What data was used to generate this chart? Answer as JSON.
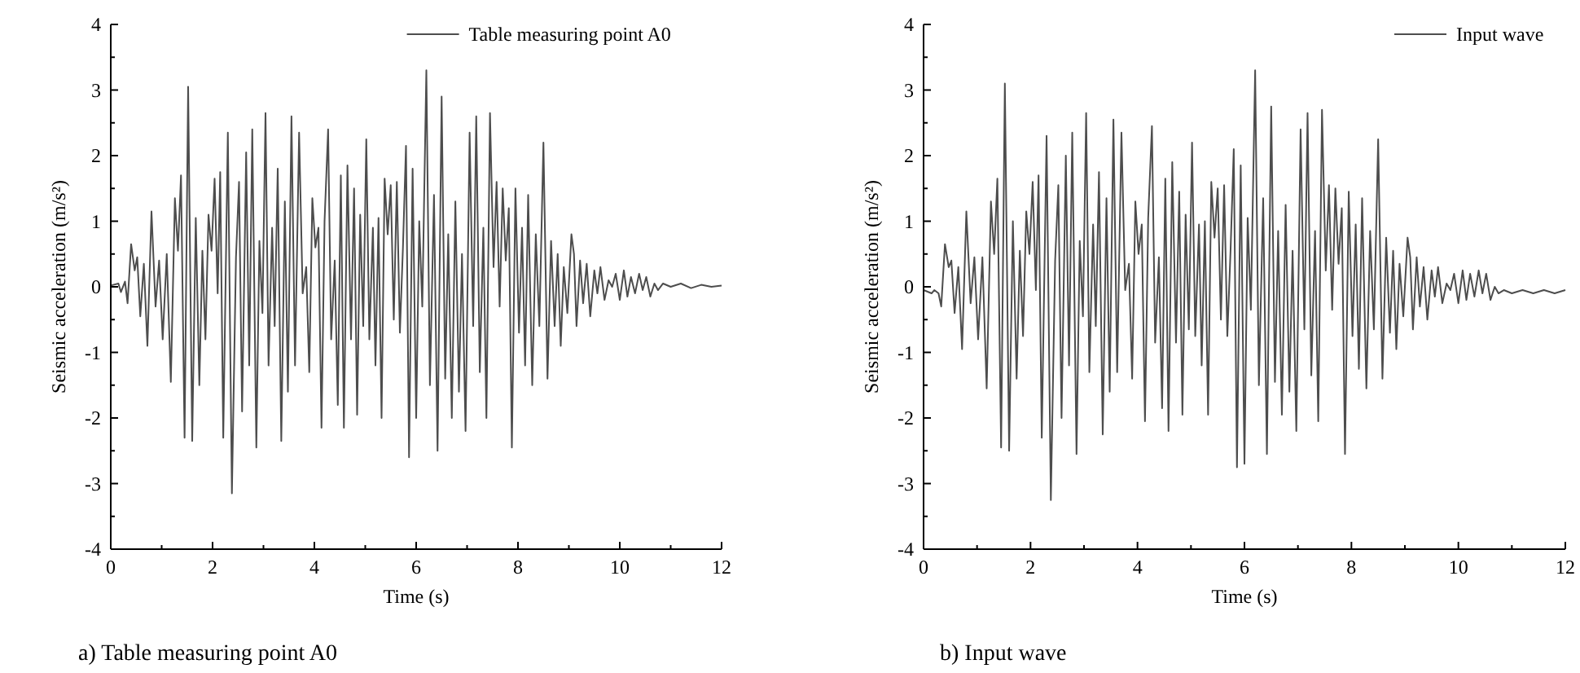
{
  "chart_data": [
    {
      "type": "line",
      "ylabel": "Seismic acceleration (m/s²)",
      "xlabel": "Time (s)",
      "annotations": [
        "a) Table measuring point A0"
      ],
      "legend": "top right",
      "marker": "none",
      "line_style": "solid",
      "xlim": [
        0,
        12
      ],
      "ylim": [
        -4,
        4
      ],
      "xticks": [
        0,
        {
          "value": 1,
          "label": null
        },
        2,
        {
          "value": 3,
          "label": null
        },
        4,
        {
          "value": 5,
          "label": null
        },
        6,
        {
          "value": 7,
          "label": null
        },
        8,
        {
          "value": 9,
          "label": null
        },
        10,
        {
          "value": 11,
          "label": null
        },
        12
      ],
      "yticks": [
        -4,
        {
          "value": -3.5,
          "label": null
        },
        -3,
        {
          "value": -2.5,
          "label": null
        },
        -2,
        {
          "value": -1.5,
          "label": null
        },
        -1,
        {
          "value": -0.5,
          "label": null
        },
        0,
        {
          "value": 0.5,
          "label": null
        },
        1,
        {
          "value": 1.5,
          "label": null
        },
        2,
        {
          "value": 2.5,
          "label": null
        },
        3,
        {
          "value": 3.5,
          "label": null
        },
        4
      ],
      "x": [
        0,
        0.15,
        0.2,
        0.28,
        0.33,
        0.4,
        0.47,
        0.52,
        0.58,
        0.65,
        0.72,
        0.8,
        0.88,
        0.95,
        1.02,
        1.1,
        1.18,
        1.26,
        1.32,
        1.38,
        1.45,
        1.52,
        1.6,
        1.67,
        1.74,
        1.8,
        1.86,
        1.92,
        1.98,
        2.04,
        2.1,
        2.15,
        2.21,
        2.3,
        2.38,
        2.46,
        2.52,
        2.58,
        2.66,
        2.72,
        2.78,
        2.86,
        2.92,
        2.98,
        3.04,
        3.1,
        3.17,
        3.22,
        3.28,
        3.35,
        3.42,
        3.48,
        3.55,
        3.62,
        3.7,
        3.77,
        3.84,
        3.9,
        3.96,
        4.02,
        4.08,
        4.14,
        4.2,
        4.27,
        4.33,
        4.4,
        4.46,
        4.52,
        4.58,
        4.65,
        4.72,
        4.78,
        4.84,
        4.9,
        4.96,
        5.02,
        5.08,
        5.15,
        5.2,
        5.26,
        5.32,
        5.38,
        5.44,
        5.5,
        5.56,
        5.62,
        5.68,
        5.74,
        5.8,
        5.86,
        5.93,
        6.0,
        6.06,
        6.12,
        6.2,
        6.27,
        6.35,
        6.42,
        6.5,
        6.57,
        6.63,
        6.7,
        6.77,
        6.84,
        6.9,
        6.97,
        7.05,
        7.12,
        7.18,
        7.25,
        7.32,
        7.38,
        7.45,
        7.52,
        7.58,
        7.64,
        7.7,
        7.76,
        7.82,
        7.88,
        7.95,
        8.02,
        8.08,
        8.14,
        8.2,
        8.28,
        8.35,
        8.42,
        8.5,
        8.58,
        8.65,
        8.72,
        8.78,
        8.84,
        8.9,
        8.97,
        9.05,
        9.1,
        9.15,
        9.22,
        9.28,
        9.35,
        9.42,
        9.5,
        9.56,
        9.62,
        9.7,
        9.78,
        9.85,
        9.92,
        10.0,
        10.08,
        10.15,
        10.22,
        10.3,
        10.38,
        10.45,
        10.52,
        10.6,
        10.68,
        10.75,
        10.85,
        11.0,
        11.2,
        11.4,
        11.6,
        11.8,
        12
      ],
      "series": [
        {
          "name": "Table measuring point A0",
          "color": "#4d4d4d",
          "values": [
            0.02,
            0.05,
            -0.08,
            0.08,
            -0.25,
            0.65,
            0.25,
            0.45,
            -0.45,
            0.35,
            -0.9,
            1.15,
            -0.3,
            0.4,
            -0.8,
            0.5,
            -1.45,
            1.35,
            0.55,
            1.7,
            -2.3,
            3.05,
            -2.35,
            1.05,
            -1.5,
            0.55,
            -0.8,
            1.1,
            0.55,
            1.65,
            -0.1,
            1.75,
            -2.3,
            2.35,
            -3.15,
            0.45,
            1.6,
            -1.9,
            2.05,
            -1.2,
            2.4,
            -2.45,
            0.7,
            -0.4,
            2.65,
            -1.2,
            0.9,
            -0.6,
            1.8,
            -2.35,
            1.3,
            -1.6,
            2.6,
            -1.2,
            2.35,
            -0.1,
            0.3,
            -1.3,
            1.35,
            0.6,
            0.9,
            -2.15,
            1.0,
            2.4,
            -0.8,
            0.4,
            -1.8,
            1.7,
            -2.15,
            1.85,
            -0.8,
            1.5,
            -1.95,
            1.1,
            -0.6,
            2.25,
            -0.8,
            0.9,
            -1.2,
            1.05,
            -2.0,
            1.65,
            0.8,
            1.55,
            -0.5,
            1.6,
            -0.7,
            0.6,
            2.15,
            -2.6,
            1.8,
            -2.0,
            1.0,
            -0.3,
            3.3,
            -1.5,
            1.4,
            -2.5,
            2.9,
            -1.4,
            0.8,
            -2.0,
            1.3,
            -1.6,
            0.5,
            -2.2,
            2.35,
            -0.6,
            2.6,
            -1.3,
            0.9,
            -2.0,
            2.65,
            0.3,
            1.6,
            -0.3,
            1.5,
            0.4,
            1.2,
            -2.45,
            1.5,
            -0.7,
            0.9,
            -1.2,
            1.4,
            -1.5,
            0.8,
            -0.6,
            2.2,
            -1.4,
            0.7,
            -0.6,
            0.5,
            -0.9,
            0.3,
            -0.4,
            0.8,
            0.5,
            -0.6,
            0.4,
            -0.25,
            0.35,
            -0.45,
            0.25,
            -0.1,
            0.3,
            -0.2,
            0.1,
            0.0,
            0.2,
            -0.2,
            0.25,
            -0.15,
            0.15,
            -0.1,
            0.2,
            -0.05,
            0.15,
            -0.15,
            0.05,
            -0.05,
            0.05,
            0.0,
            0.05,
            -0.02,
            0.03,
            0.0,
            0.02
          ]
        }
      ]
    },
    {
      "type": "line",
      "ylabel": "Seismic acceleration (m/s²)",
      "xlabel": "Time (s)",
      "annotations": [
        "b) Input wave"
      ],
      "legend": "top right",
      "marker": "none",
      "line_style": "solid",
      "xlim": [
        0,
        12
      ],
      "ylim": [
        -4,
        4
      ],
      "xticks": [
        0,
        {
          "value": 1,
          "label": null
        },
        2,
        {
          "value": 3,
          "label": null
        },
        4,
        {
          "value": 5,
          "label": null
        },
        6,
        {
          "value": 7,
          "label": null
        },
        8,
        {
          "value": 9,
          "label": null
        },
        10,
        {
          "value": 11,
          "label": null
        },
        12
      ],
      "yticks": [
        -4,
        {
          "value": -3.5,
          "label": null
        },
        -3,
        {
          "value": -2.5,
          "label": null
        },
        -2,
        {
          "value": -1.5,
          "label": null
        },
        -1,
        {
          "value": -0.5,
          "label": null
        },
        0,
        {
          "value": 0.5,
          "label": null
        },
        1,
        {
          "value": 1.5,
          "label": null
        },
        2,
        {
          "value": 2.5,
          "label": null
        },
        3,
        {
          "value": 3.5,
          "label": null
        },
        4
      ],
      "x": [
        0,
        0.15,
        0.2,
        0.28,
        0.33,
        0.4,
        0.47,
        0.52,
        0.58,
        0.65,
        0.72,
        0.8,
        0.88,
        0.95,
        1.02,
        1.1,
        1.18,
        1.26,
        1.32,
        1.38,
        1.45,
        1.52,
        1.6,
        1.67,
        1.74,
        1.8,
        1.86,
        1.92,
        1.98,
        2.04,
        2.1,
        2.15,
        2.21,
        2.3,
        2.38,
        2.46,
        2.52,
        2.58,
        2.66,
        2.72,
        2.78,
        2.86,
        2.92,
        2.98,
        3.04,
        3.1,
        3.17,
        3.22,
        3.28,
        3.35,
        3.42,
        3.48,
        3.55,
        3.62,
        3.7,
        3.77,
        3.84,
        3.9,
        3.96,
        4.02,
        4.08,
        4.14,
        4.2,
        4.27,
        4.33,
        4.4,
        4.46,
        4.52,
        4.58,
        4.65,
        4.72,
        4.78,
        4.84,
        4.9,
        4.96,
        5.02,
        5.08,
        5.15,
        5.2,
        5.26,
        5.32,
        5.38,
        5.44,
        5.5,
        5.56,
        5.62,
        5.68,
        5.74,
        5.8,
        5.86,
        5.93,
        6.0,
        6.06,
        6.12,
        6.2,
        6.27,
        6.35,
        6.42,
        6.5,
        6.57,
        6.63,
        6.7,
        6.77,
        6.84,
        6.9,
        6.97,
        7.05,
        7.12,
        7.18,
        7.25,
        7.32,
        7.38,
        7.45,
        7.52,
        7.58,
        7.64,
        7.7,
        7.76,
        7.82,
        7.88,
        7.95,
        8.02,
        8.08,
        8.14,
        8.2,
        8.28,
        8.35,
        8.42,
        8.5,
        8.58,
        8.65,
        8.72,
        8.78,
        8.84,
        8.9,
        8.97,
        9.05,
        9.1,
        9.15,
        9.22,
        9.28,
        9.35,
        9.42,
        9.5,
        9.56,
        9.62,
        9.7,
        9.78,
        9.85,
        9.92,
        10.0,
        10.08,
        10.15,
        10.22,
        10.3,
        10.38,
        10.45,
        10.52,
        10.6,
        10.68,
        10.75,
        10.85,
        11.0,
        11.2,
        11.4,
        11.6,
        11.8,
        12
      ],
      "series": [
        {
          "name": "Input wave",
          "color": "#4d4d4d",
          "values": [
            -0.05,
            -0.1,
            -0.05,
            -0.1,
            -0.3,
            0.65,
            0.3,
            0.4,
            -0.4,
            0.3,
            -0.95,
            1.15,
            -0.25,
            0.45,
            -0.8,
            0.45,
            -1.55,
            1.3,
            0.5,
            1.65,
            -2.45,
            3.1,
            -2.5,
            1.0,
            -1.4,
            0.55,
            -0.75,
            1.15,
            0.5,
            1.6,
            -0.05,
            1.7,
            -2.3,
            2.3,
            -3.25,
            0.4,
            1.55,
            -2.0,
            2.0,
            -1.2,
            2.35,
            -2.55,
            0.7,
            -0.45,
            2.65,
            -1.3,
            0.95,
            -0.6,
            1.75,
            -2.25,
            1.35,
            -1.6,
            2.55,
            -1.3,
            2.35,
            -0.05,
            0.35,
            -1.4,
            1.3,
            0.5,
            0.95,
            -2.05,
            1.05,
            2.45,
            -0.85,
            0.45,
            -1.85,
            1.65,
            -2.2,
            1.9,
            -0.85,
            1.45,
            -1.95,
            1.1,
            -0.65,
            2.2,
            -0.75,
            0.95,
            -1.2,
            1.0,
            -1.95,
            1.6,
            0.75,
            1.5,
            -0.5,
            1.55,
            -0.75,
            0.55,
            2.1,
            -2.75,
            1.85,
            -2.7,
            1.05,
            -0.35,
            3.3,
            -1.5,
            1.35,
            -2.55,
            2.75,
            -1.45,
            0.85,
            -1.95,
            1.25,
            -1.6,
            0.55,
            -2.2,
            2.4,
            -0.65,
            2.65,
            -1.35,
            0.85,
            -2.05,
            2.7,
            0.25,
            1.55,
            -0.35,
            1.5,
            0.35,
            1.2,
            -2.55,
            1.45,
            -0.75,
            0.95,
            -1.25,
            1.35,
            -1.55,
            0.85,
            -0.65,
            2.25,
            -1.4,
            0.75,
            -0.7,
            0.55,
            -0.95,
            0.35,
            -0.45,
            0.75,
            0.45,
            -0.65,
            0.45,
            -0.3,
            0.3,
            -0.5,
            0.25,
            -0.15,
            0.3,
            -0.25,
            0.05,
            -0.05,
            0.2,
            -0.25,
            0.25,
            -0.2,
            0.2,
            -0.15,
            0.25,
            -0.1,
            0.2,
            -0.2,
            0.0,
            -0.1,
            -0.05,
            -0.1,
            -0.05,
            -0.1,
            -0.05,
            -0.1,
            -0.05
          ]
        }
      ]
    }
  ]
}
